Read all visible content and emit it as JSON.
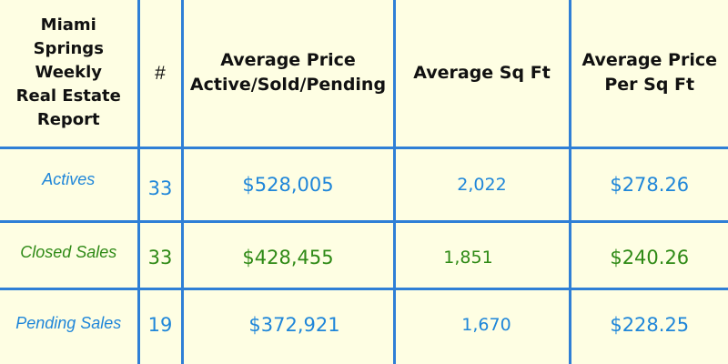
{
  "colors": {
    "background": "#fefee3",
    "grid_border": "#2f7fd6",
    "actives_text": "#1f86d9",
    "closed_sales_text": "#2f8a16",
    "pending_sales_text": "#1f86d9",
    "header_text": "#111111"
  },
  "header": {
    "title_lines": [
      "Miami",
      "Springs",
      "Weekly",
      "Real Estate",
      "Report"
    ],
    "count": "#",
    "avg_price_lines": [
      "Average Price",
      "Active/Sold/Pending"
    ],
    "avg_sqft": "Average Sq Ft",
    "avg_price_per_sqft_lines": [
      "Average Price",
      "Per Sq Ft"
    ]
  },
  "rows": [
    {
      "label": "Actives",
      "count": "33",
      "avg_price": "$528,005",
      "avg_sqft": "2,022",
      "price_per_sqft": "$278.26"
    },
    {
      "label": "Closed Sales",
      "count": "33",
      "avg_price": "$428,455",
      "avg_sqft": "1,851",
      "price_per_sqft": "$240.26"
    },
    {
      "label": "Pending Sales",
      "count": "19",
      "avg_price": "$372,921",
      "avg_sqft": "1,670",
      "price_per_sqft": "$228.25"
    }
  ]
}
